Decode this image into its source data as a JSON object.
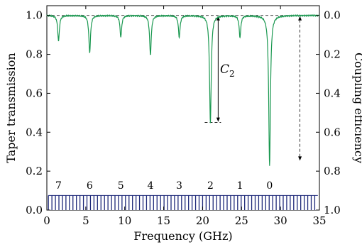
{
  "chart_data": {
    "type": "line",
    "xlabel": "Frequency (GHz)",
    "ylabel_left": "Taper transmission",
    "ylabel_right": "Coupling efficiency",
    "xlim": [
      0,
      35
    ],
    "ylim_left": [
      0,
      1.05
    ],
    "ylim_right": [
      1.0,
      0.0
    ],
    "x_ticks": [
      0,
      5,
      10,
      15,
      20,
      25,
      30,
      35
    ],
    "x_tick_labels": [
      "0",
      "5",
      "10",
      "15",
      "20",
      "25",
      "30",
      "35"
    ],
    "y_ticks_left": [
      0.0,
      0.2,
      0.4,
      0.6,
      0.8,
      1.0
    ],
    "y_tick_labels_left": [
      "0.0",
      "0.2",
      "0.4",
      "0.6",
      "0.8",
      "1.0"
    ],
    "y_tick_labels_right": [
      "1.0",
      "0.8",
      "0.6",
      "0.4",
      "0.2",
      "0.0"
    ],
    "line_color": "#1a9850",
    "baseline": 1.0,
    "dips": [
      {
        "x": 1.5,
        "min": 0.87
      },
      {
        "x": 5.5,
        "min": 0.81
      },
      {
        "x": 9.5,
        "min": 0.89
      },
      {
        "x": 13.3,
        "min": 0.8
      },
      {
        "x": 17.0,
        "min": 0.89
      },
      {
        "x": 21.0,
        "min": 0.45
      },
      {
        "x": 24.8,
        "min": 0.89
      },
      {
        "x": 28.6,
        "min": 0.23
      }
    ],
    "mode_labels": [
      {
        "x": 1.5,
        "label": "7"
      },
      {
        "x": 5.5,
        "label": "6"
      },
      {
        "x": 9.5,
        "label": "5"
      },
      {
        "x": 13.3,
        "label": "4"
      },
      {
        "x": 17.0,
        "label": "3"
      },
      {
        "x": 21.0,
        "label": "2"
      },
      {
        "x": 24.8,
        "label": "1"
      },
      {
        "x": 28.6,
        "label": "0"
      }
    ],
    "annotation_label": "C",
    "annotation_subscript": "2",
    "c2_arrow": {
      "x": 22.0,
      "y_top": 1.0,
      "y_bottom": 0.45
    },
    "dashed_arrow": {
      "x": 32.5,
      "y_top": 1.0,
      "y_bottom": 0.25
    },
    "comb": {
      "x_start": 0.2,
      "x_end": 34.8,
      "spacing": 0.45,
      "y_top": 0.075,
      "color": "#1f2a7a"
    }
  }
}
